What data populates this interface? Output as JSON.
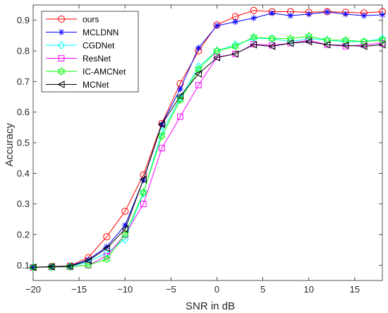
{
  "chart_data": {
    "type": "line",
    "title": "",
    "xlabel": "SNR in dB",
    "ylabel": "Accuracy",
    "xlim": [
      -20,
      18
    ],
    "ylim": [
      0.05,
      0.95
    ],
    "xticks": [
      -20,
      -15,
      -10,
      -5,
      0,
      5,
      10,
      15
    ],
    "yticks": [
      0.1,
      0.2,
      0.3,
      0.4,
      0.5,
      0.6,
      0.7,
      0.8,
      0.9
    ],
    "grid": false,
    "legend_position": "top-left",
    "x": [
      -20,
      -18,
      -16,
      -14,
      -12,
      -10,
      -8,
      -6,
      -4,
      -2,
      0,
      2,
      4,
      6,
      8,
      10,
      12,
      14,
      16,
      18
    ],
    "series": [
      {
        "name": "ours",
        "color": "#ff0000",
        "marker": "circle",
        "values": [
          0.093,
          0.096,
          0.098,
          0.125,
          0.193,
          0.276,
          0.395,
          0.563,
          0.693,
          0.8,
          0.885,
          0.912,
          0.932,
          0.928,
          0.928,
          0.926,
          0.928,
          0.926,
          0.924,
          0.928
        ]
      },
      {
        "name": "MCLDNN",
        "color": "#0000ff",
        "marker": "asterisk",
        "values": [
          0.093,
          0.095,
          0.097,
          0.118,
          0.16,
          0.23,
          0.378,
          0.56,
          0.675,
          0.81,
          0.882,
          0.895,
          0.907,
          0.923,
          0.915,
          0.92,
          0.927,
          0.92,
          0.915,
          0.918
        ]
      },
      {
        "name": "CGDNet",
        "color": "#00ffff",
        "marker": "diamond",
        "values": [
          0.093,
          0.094,
          0.096,
          0.11,
          0.14,
          0.185,
          0.335,
          0.535,
          0.645,
          0.748,
          0.8,
          0.82,
          0.84,
          0.84,
          0.83,
          0.84,
          0.835,
          0.83,
          0.83,
          0.84
        ]
      },
      {
        "name": "ResNet",
        "color": "#ff00ff",
        "marker": "square",
        "values": [
          0.093,
          0.094,
          0.095,
          0.1,
          0.13,
          0.2,
          0.3,
          0.482,
          0.585,
          0.688,
          0.78,
          0.79,
          0.822,
          0.818,
          0.825,
          0.835,
          0.82,
          0.815,
          0.82,
          0.825
        ]
      },
      {
        "name": "IC-AMCNet",
        "color": "#00ff00",
        "marker": "hexagram",
        "values": [
          0.093,
          0.094,
          0.095,
          0.1,
          0.12,
          0.2,
          0.338,
          0.522,
          0.64,
          0.74,
          0.8,
          0.815,
          0.845,
          0.84,
          0.84,
          0.848,
          0.835,
          0.835,
          0.83,
          0.836
        ]
      },
      {
        "name": "MCNet",
        "color": "#000000",
        "marker": "triangle-left",
        "values": [
          0.093,
          0.095,
          0.096,
          0.115,
          0.155,
          0.218,
          0.38,
          0.56,
          0.652,
          0.725,
          0.778,
          0.79,
          0.82,
          0.815,
          0.825,
          0.83,
          0.82,
          0.818,
          0.815,
          0.82
        ]
      }
    ]
  }
}
